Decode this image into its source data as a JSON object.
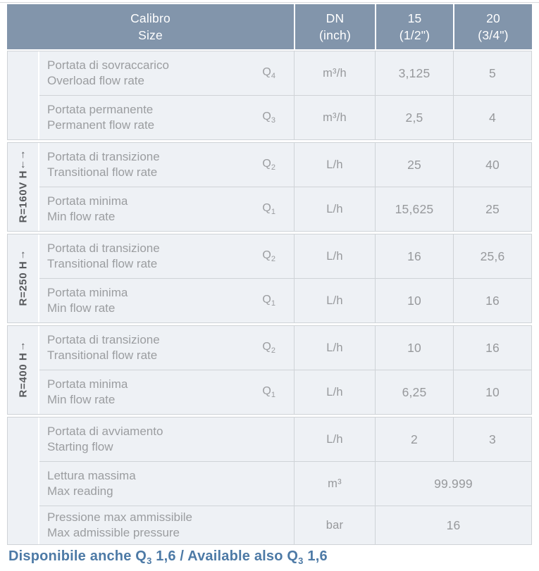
{
  "colors": {
    "header_bg": "#8295ab",
    "header_text": "#ffffff",
    "cell_bg": "#eef1f5",
    "border": "#cfd3d7",
    "body_text": "#9b9da0",
    "section_label_text": "#57595c",
    "footnote_text": "#4d7aa6"
  },
  "header": {
    "calibro_line1": "Calibro",
    "calibro_line2": "Size",
    "dn_line1": "DN",
    "dn_line2": "(inch)",
    "c15_line1": "15",
    "c15_line2": "(1/2\")",
    "c20_line1": "20",
    "c20_line2": "(3/4\")"
  },
  "sections": [
    {
      "label": null,
      "rows": [
        {
          "it": "Portata di sovraccarico",
          "en": "Overload flow rate",
          "q": "Q",
          "q_sub": "4",
          "unit": "m³/h",
          "v15": "3,125",
          "v20": "5"
        },
        {
          "it": "Portata permanente",
          "en": "Permanent flow rate",
          "q": "Q",
          "q_sub": "3",
          "unit": "m³/h",
          "v15": "2,5",
          "v20": "4"
        }
      ]
    },
    {
      "label": {
        "text": "R=160V H",
        "arrows": "↓↑"
      },
      "rows": [
        {
          "it": "Portata di transizione",
          "en": "Transitional flow rate",
          "q": "Q",
          "q_sub": "2",
          "unit": "L/h",
          "v15": "25",
          "v20": "40"
        },
        {
          "it": "Portata minima",
          "en": "Min flow rate",
          "q": "Q",
          "q_sub": "1",
          "unit": "L/h",
          "v15": "15,625",
          "v20": "25"
        }
      ]
    },
    {
      "label": {
        "text": "R=250 H",
        "arrows": "↑"
      },
      "rows": [
        {
          "it": "Portata di transizione",
          "en": "Transitional flow rate",
          "q": "Q",
          "q_sub": "2",
          "unit": "L/h",
          "v15": "16",
          "v20": "25,6"
        },
        {
          "it": "Portata minima",
          "en": "Min flow rate",
          "q": "Q",
          "q_sub": "1",
          "unit": "L/h",
          "v15": "10",
          "v20": "16"
        }
      ]
    },
    {
      "label": {
        "text": "R=400 H",
        "arrows": "↑"
      },
      "rows": [
        {
          "it": "Portata di transizione",
          "en": "Transitional flow rate",
          "q": "Q",
          "q_sub": "2",
          "unit": "L/h",
          "v15": "10",
          "v20": "16"
        },
        {
          "it": "Portata minima",
          "en": "Min flow rate",
          "q": "Q",
          "q_sub": "1",
          "unit": "L/h",
          "v15": "6,25",
          "v20": "10"
        }
      ]
    },
    {
      "label": null,
      "rows": [
        {
          "it": "Portata di avviamento",
          "en": "Starting flow",
          "q": "",
          "q_sub": "",
          "unit": "L/h",
          "v15": "2",
          "v20": "3"
        },
        {
          "it": "Lettura massima",
          "en": "Max reading",
          "q": "",
          "q_sub": "",
          "unit": "m³",
          "vspan": "99.999"
        },
        {
          "it": "Pressione max ammissibile",
          "en": "Max admissible pressure",
          "q": "",
          "q_sub": "",
          "unit": "bar",
          "vspan": "16"
        }
      ]
    }
  ],
  "footnote": {
    "parts": [
      {
        "t": "Disponibile anche Q"
      },
      {
        "sub": "3"
      },
      {
        "t": "  1,6 / Available also Q"
      },
      {
        "sub": "3"
      },
      {
        "t": "  1,6"
      }
    ]
  }
}
